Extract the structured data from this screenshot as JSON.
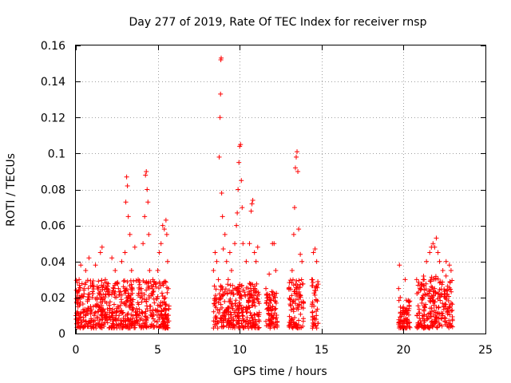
{
  "chart_data": {
    "type": "scatter",
    "title": "Day 277 of 2019, Rate Of TEC Index for receiver rnsp",
    "xlabel": "GPS time / hours",
    "ylabel": "ROTI / TECUs",
    "xlim": [
      0,
      25
    ],
    "ylim": [
      0,
      0.16
    ],
    "xticks": [
      0,
      5,
      10,
      15,
      20,
      25
    ],
    "xtick_labels": [
      "0",
      "5",
      "10",
      "15",
      "20",
      "25"
    ],
    "yticks": [
      0,
      0.02,
      0.04,
      0.06,
      0.08,
      0.1,
      0.12,
      0.14,
      0.16
    ],
    "ytick_labels": [
      "0",
      "0.02",
      "0.04",
      "0.06",
      "0.08",
      "0.1",
      "0.12",
      "0.14",
      "0.16"
    ],
    "grid": true,
    "marker": "+",
    "color": "#ff0000",
    "series": [
      {
        "name": "ROTI",
        "points": [
          [
            0.1,
            0.012
          ],
          [
            0.2,
            0.03
          ],
          [
            0.3,
            0.038
          ],
          [
            0.35,
            0.02
          ],
          [
            0.5,
            0.025
          ],
          [
            0.6,
            0.035
          ],
          [
            0.8,
            0.042
          ],
          [
            0.9,
            0.015
          ],
          [
            1.0,
            0.028
          ],
          [
            1.2,
            0.038
          ],
          [
            1.3,
            0.02
          ],
          [
            1.5,
            0.045
          ],
          [
            1.6,
            0.048
          ],
          [
            1.8,
            0.03
          ],
          [
            2.0,
            0.022
          ],
          [
            2.2,
            0.042
          ],
          [
            2.4,
            0.035
          ],
          [
            2.6,
            0.025
          ],
          [
            2.8,
            0.04
          ],
          [
            3.0,
            0.045
          ],
          [
            3.05,
            0.073
          ],
          [
            3.1,
            0.087
          ],
          [
            3.15,
            0.082
          ],
          [
            3.2,
            0.065
          ],
          [
            3.3,
            0.055
          ],
          [
            3.4,
            0.035
          ],
          [
            3.6,
            0.048
          ],
          [
            3.8,
            0.03
          ],
          [
            4.0,
            0.025
          ],
          [
            4.1,
            0.05
          ],
          [
            4.2,
            0.065
          ],
          [
            4.25,
            0.088
          ],
          [
            4.3,
            0.09
          ],
          [
            4.35,
            0.08
          ],
          [
            4.4,
            0.073
          ],
          [
            4.45,
            0.055
          ],
          [
            4.5,
            0.035
          ],
          [
            4.7,
            0.03
          ],
          [
            4.9,
            0.028
          ],
          [
            5.0,
            0.035
          ],
          [
            5.1,
            0.045
          ],
          [
            5.2,
            0.05
          ],
          [
            5.3,
            0.06
          ],
          [
            5.4,
            0.058
          ],
          [
            5.5,
            0.063
          ],
          [
            5.55,
            0.055
          ],
          [
            5.6,
            0.04
          ],
          [
            8.4,
            0.035
          ],
          [
            8.5,
            0.045
          ],
          [
            8.6,
            0.04
          ],
          [
            8.7,
            0.03
          ],
          [
            8.75,
            0.098
          ],
          [
            8.8,
            0.12
          ],
          [
            8.83,
            0.133
          ],
          [
            8.85,
            0.152
          ],
          [
            8.87,
            0.153
          ],
          [
            8.9,
            0.078
          ],
          [
            8.95,
            0.065
          ],
          [
            9.0,
            0.047
          ],
          [
            9.1,
            0.055
          ],
          [
            9.2,
            0.04
          ],
          [
            9.3,
            0.03
          ],
          [
            9.4,
            0.045
          ],
          [
            9.5,
            0.035
          ],
          [
            9.7,
            0.05
          ],
          [
            9.8,
            0.06
          ],
          [
            9.85,
            0.067
          ],
          [
            9.9,
            0.08
          ],
          [
            9.95,
            0.095
          ],
          [
            10.0,
            0.104
          ],
          [
            10.05,
            0.105
          ],
          [
            10.1,
            0.085
          ],
          [
            10.15,
            0.07
          ],
          [
            10.2,
            0.05
          ],
          [
            10.4,
            0.04
          ],
          [
            10.6,
            0.05
          ],
          [
            10.7,
            0.068
          ],
          [
            10.75,
            0.072
          ],
          [
            10.8,
            0.074
          ],
          [
            10.9,
            0.045
          ],
          [
            11.0,
            0.04
          ],
          [
            11.1,
            0.048
          ],
          [
            11.6,
            0.025
          ],
          [
            11.8,
            0.033
          ],
          [
            12.0,
            0.05
          ],
          [
            12.1,
            0.05
          ],
          [
            12.2,
            0.035
          ],
          [
            13.0,
            0.025
          ],
          [
            13.2,
            0.035
          ],
          [
            13.3,
            0.055
          ],
          [
            13.35,
            0.07
          ],
          [
            13.4,
            0.092
          ],
          [
            13.45,
            0.098
          ],
          [
            13.5,
            0.101
          ],
          [
            13.55,
            0.09
          ],
          [
            13.6,
            0.058
          ],
          [
            13.7,
            0.044
          ],
          [
            13.8,
            0.04
          ],
          [
            14.4,
            0.03
          ],
          [
            14.5,
            0.045
          ],
          [
            14.6,
            0.047
          ],
          [
            14.7,
            0.04
          ],
          [
            19.7,
            0.025
          ],
          [
            19.75,
            0.038
          ],
          [
            19.8,
            0.02
          ],
          [
            20.1,
            0.03
          ],
          [
            20.3,
            0.018
          ],
          [
            20.8,
            0.03
          ],
          [
            21.0,
            0.025
          ],
          [
            21.2,
            0.03
          ],
          [
            21.4,
            0.04
          ],
          [
            21.6,
            0.045
          ],
          [
            21.7,
            0.048
          ],
          [
            21.8,
            0.05
          ],
          [
            21.9,
            0.048
          ],
          [
            22.0,
            0.053
          ],
          [
            22.1,
            0.045
          ],
          [
            22.2,
            0.04
          ],
          [
            22.4,
            0.035
          ],
          [
            22.6,
            0.04
          ],
          [
            22.8,
            0.038
          ],
          [
            22.9,
            0.035
          ]
        ]
      }
    ],
    "dense_bands": [
      {
        "x_start": 0.0,
        "x_end": 5.7,
        "y_low": 0.003,
        "y_high": 0.03
      },
      {
        "x_start": 8.4,
        "x_end": 11.2,
        "y_low": 0.003,
        "y_high": 0.028
      },
      {
        "x_start": 11.6,
        "x_end": 12.3,
        "y_low": 0.003,
        "y_high": 0.025
      },
      {
        "x_start": 13.0,
        "x_end": 13.9,
        "y_low": 0.003,
        "y_high": 0.03
      },
      {
        "x_start": 14.4,
        "x_end": 14.8,
        "y_low": 0.003,
        "y_high": 0.03
      },
      {
        "x_start": 19.7,
        "x_end": 20.4,
        "y_low": 0.003,
        "y_high": 0.02
      },
      {
        "x_start": 20.8,
        "x_end": 23.0,
        "y_low": 0.003,
        "y_high": 0.032
      }
    ]
  }
}
